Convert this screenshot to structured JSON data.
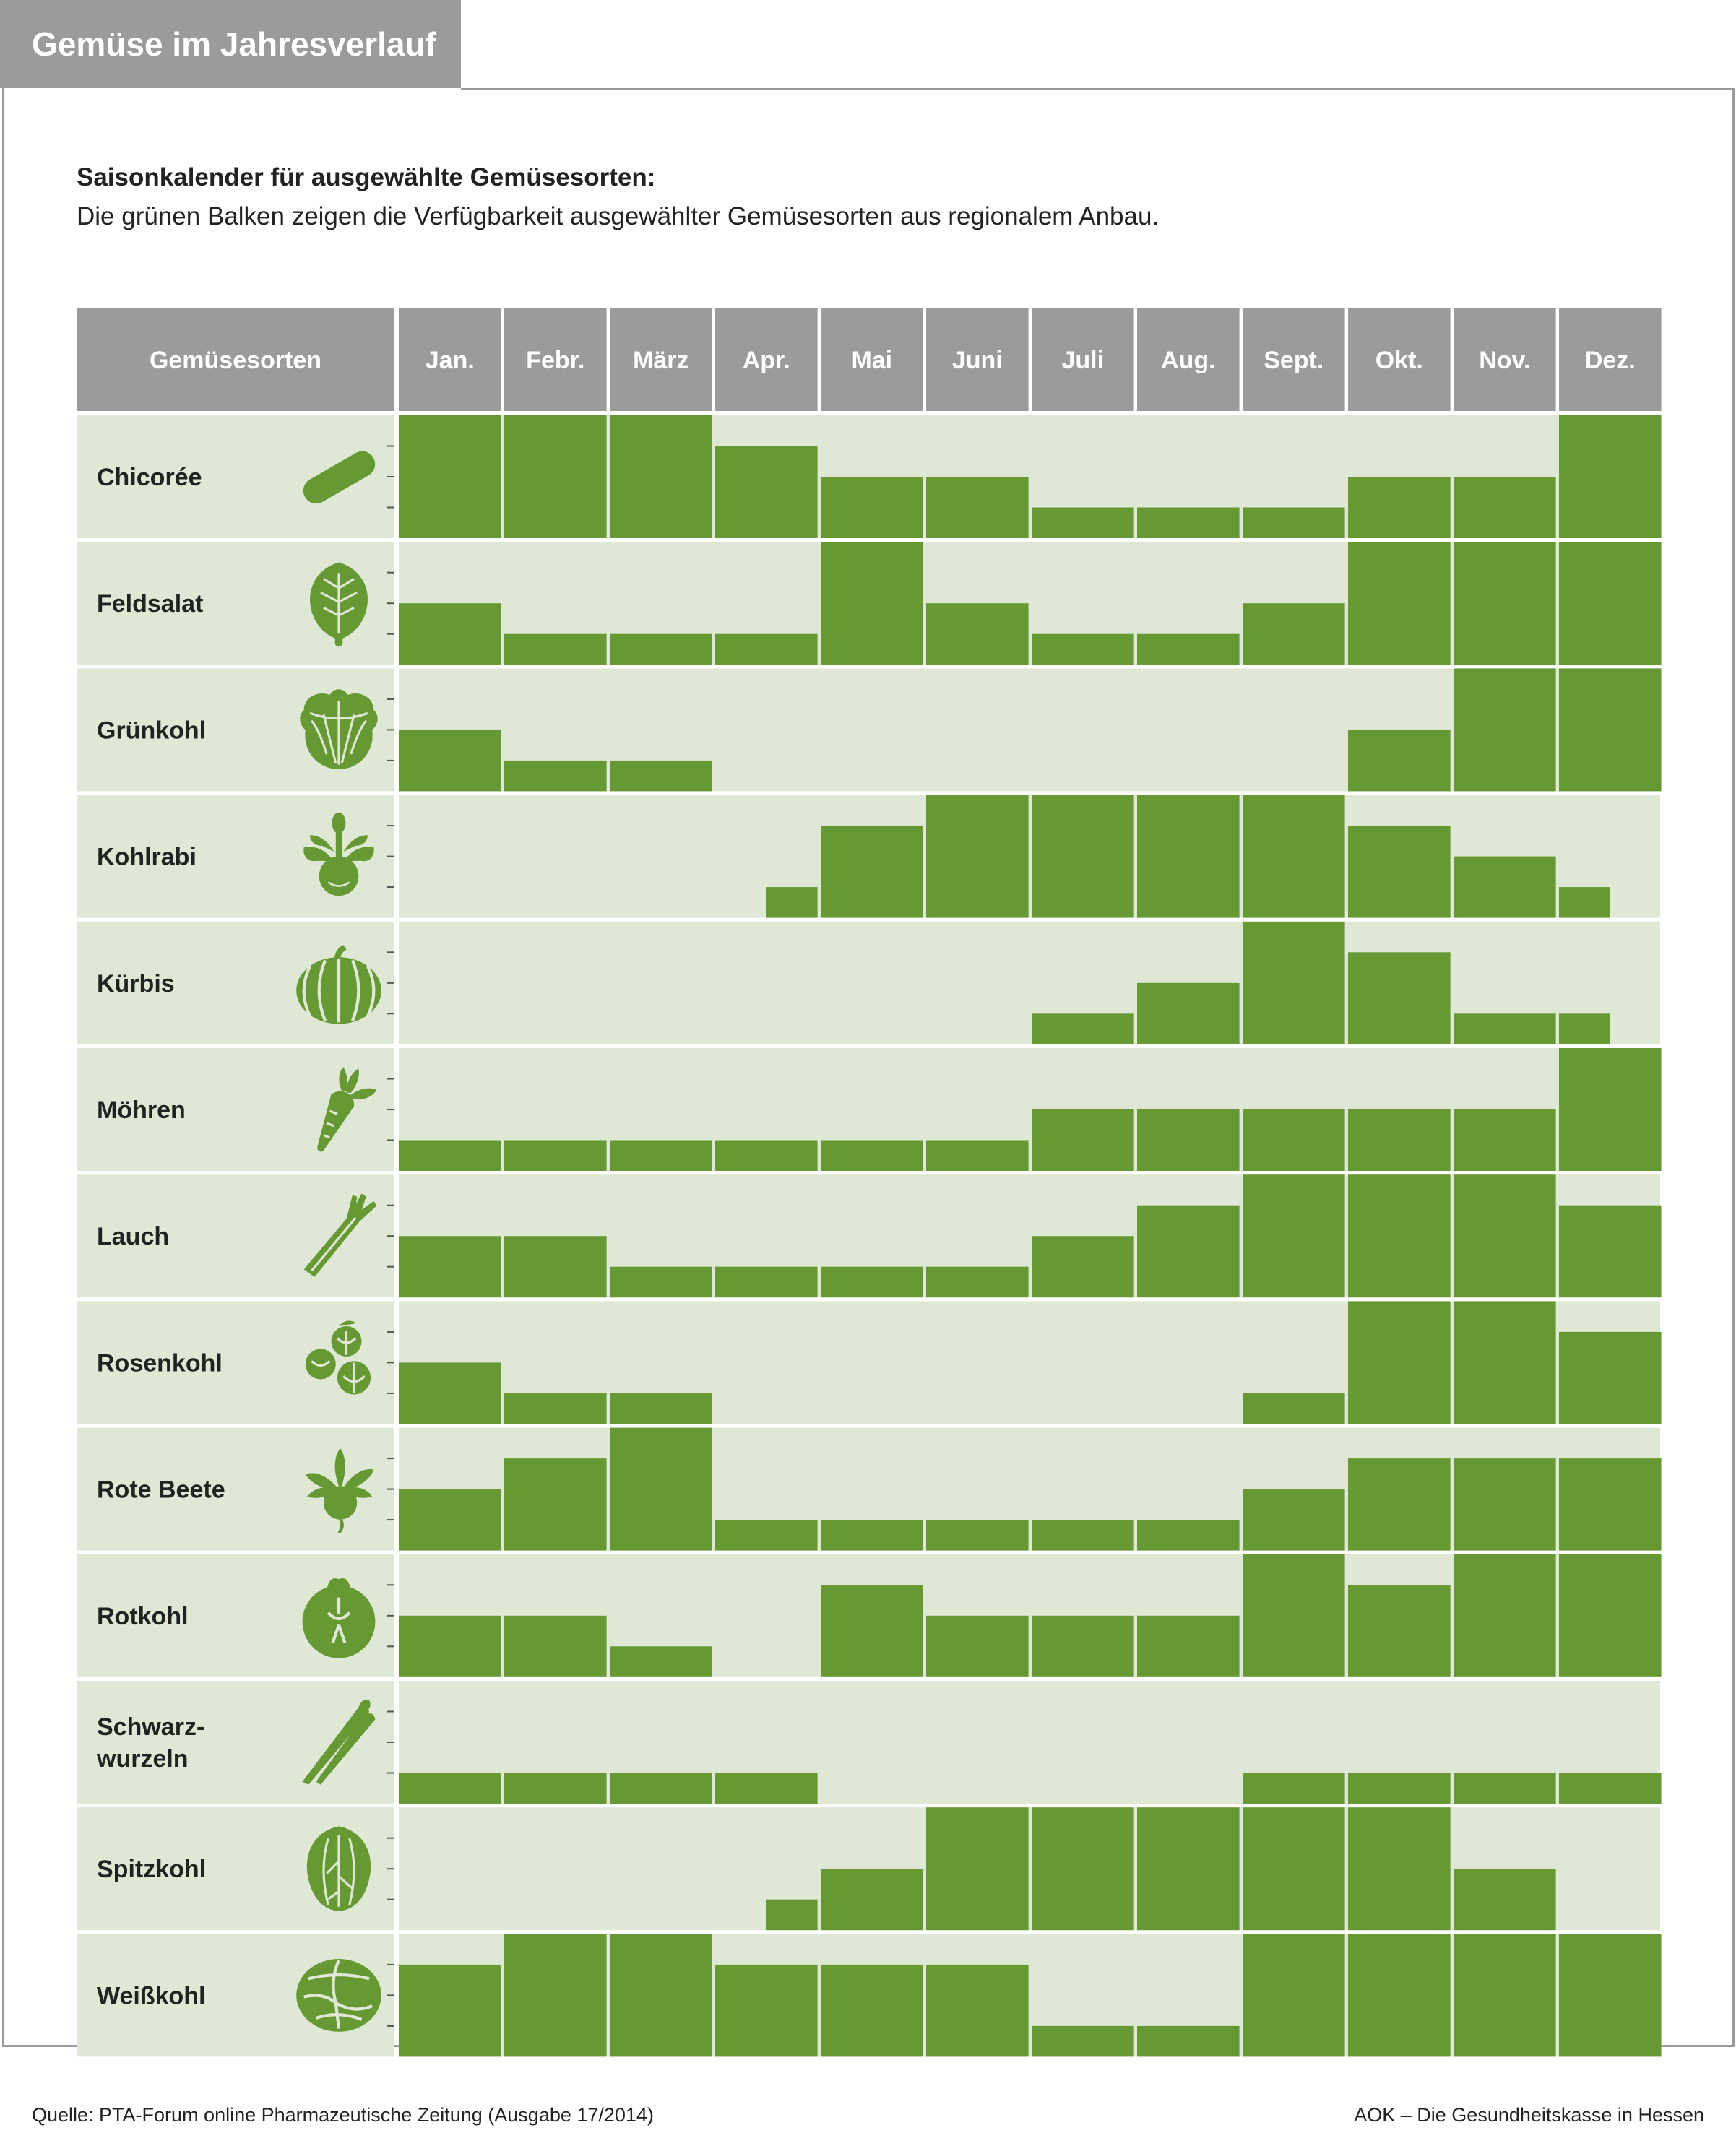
{
  "header": {
    "title": "Gemüse im Jahresverlauf"
  },
  "intro": {
    "subtitle": "Saisonkalender für ausgewählte Gemüsesorten:",
    "description": "Die grünen Balken zeigen die Verfügbarkeit ausgewählter Gemüsesorten aus regionalem Anbau."
  },
  "footer": {
    "source": "Quelle: PTA-Forum online Pharmazeutische Zeitung (Ausgabe 17/2014)",
    "publisher": "AOK – Die Gesundheitskasse in Hessen"
  },
  "colors": {
    "bar": "#669933",
    "row_background": "#dfe8d5",
    "header_background": "#9b9b9b",
    "icon": "#669933"
  },
  "chart_data": {
    "type": "bar",
    "layout": "small-multiples",
    "row_header": "Gemüsesorten",
    "categories": [
      "Jan.",
      "Febr.",
      "März",
      "Apr.",
      "Mai",
      "Juni",
      "Juli",
      "Aug.",
      "Sept.",
      "Okt.",
      "Nov.",
      "Dez."
    ],
    "ylim": [
      0,
      4
    ],
    "series": [
      {
        "name": "Chicorée",
        "icon": "chicory-icon",
        "values": [
          4,
          4,
          4,
          3,
          2,
          2,
          1,
          1,
          1,
          2,
          2,
          4
        ]
      },
      {
        "name": "Feldsalat",
        "icon": "lambs-lettuce-icon",
        "values": [
          2,
          1,
          1,
          1,
          4,
          2,
          1,
          1,
          2,
          4,
          4,
          4
        ]
      },
      {
        "name": "Grünkohl",
        "icon": "kale-icon",
        "values": [
          2,
          1,
          1,
          0,
          0,
          0,
          0,
          0,
          0,
          2,
          4,
          4
        ]
      },
      {
        "name": "Kohlrabi",
        "icon": "kohlrabi-icon",
        "values": [
          0,
          0,
          0,
          1,
          3,
          4,
          4,
          4,
          4,
          3,
          2,
          1
        ],
        "half_width": [
          3,
          11
        ]
      },
      {
        "name": "Kürbis",
        "icon": "pumpkin-icon",
        "values": [
          0,
          0,
          0,
          0,
          0,
          0,
          1,
          2,
          4,
          3,
          1,
          1
        ],
        "half_width": [
          11
        ]
      },
      {
        "name": "Möhren",
        "icon": "carrot-icon",
        "values": [
          1,
          1,
          1,
          1,
          1,
          1,
          2,
          2,
          2,
          2,
          2,
          4
        ]
      },
      {
        "name": "Lauch",
        "icon": "leek-icon",
        "values": [
          2,
          2,
          1,
          1,
          1,
          1,
          2,
          3,
          4,
          4,
          4,
          3
        ]
      },
      {
        "name": "Rosenkohl",
        "icon": "brussels-sprouts-icon",
        "values": [
          2,
          1,
          1,
          0,
          0,
          0,
          0,
          0,
          1,
          4,
          4,
          3
        ]
      },
      {
        "name": "Rote Beete",
        "icon": "beetroot-icon",
        "values": [
          2,
          3,
          4,
          1,
          1,
          1,
          1,
          1,
          2,
          3,
          3,
          3
        ]
      },
      {
        "name": "Rotkohl",
        "icon": "red-cabbage-icon",
        "values": [
          2,
          2,
          1,
          0,
          3,
          2,
          2,
          2,
          4,
          3,
          4,
          4
        ]
      },
      {
        "name": "Schwarz-\nwurzeln",
        "icon": "salsify-icon",
        "values": [
          1,
          1,
          1,
          1,
          0,
          0,
          0,
          0,
          1,
          1,
          1,
          1
        ]
      },
      {
        "name": "Spitzkohl",
        "icon": "pointed-cabbage-icon",
        "values": [
          0,
          0,
          0,
          1,
          2,
          4,
          4,
          4,
          4,
          4,
          2,
          0
        ],
        "half_width": [
          3
        ]
      },
      {
        "name": "Weißkohl",
        "icon": "white-cabbage-icon",
        "values": [
          3,
          4,
          4,
          3,
          3,
          3,
          1,
          1,
          4,
          4,
          4,
          4
        ]
      }
    ]
  }
}
